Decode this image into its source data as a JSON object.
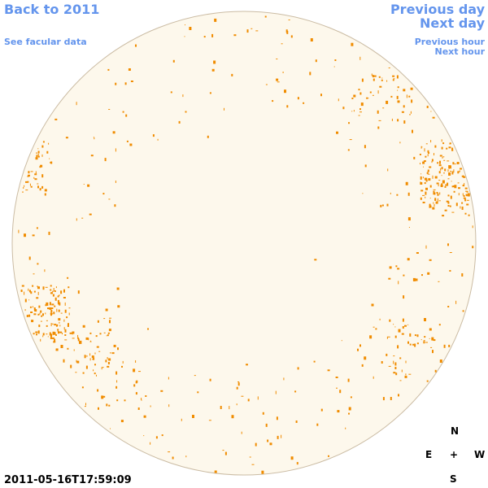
{
  "nav": {
    "back": "Back to 2011",
    "facular": "See facular data",
    "previous_day": "Previous day",
    "next_day": "Next day",
    "previous_hour": "Previous hour",
    "next_hour": "Next hour"
  },
  "timestamp": "2011-05-16T17:59:09",
  "compass": {
    "north": "N",
    "east": "E",
    "center": "+",
    "west": "W",
    "south": "S"
  }
}
